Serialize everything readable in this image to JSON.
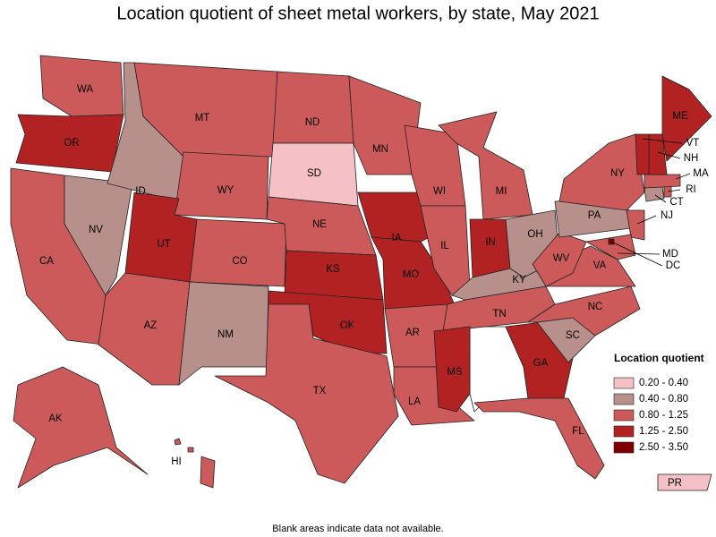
{
  "title": "Location quotient of sheet metal workers, by state, May 2021",
  "footnote": "Blank areas indicate data not available.",
  "legend": {
    "title": "Location quotient",
    "items": [
      {
        "label": "0.20 - 0.40",
        "color": "#f5c1c6"
      },
      {
        "label": "0.40 - 0.80",
        "color": "#b8908b"
      },
      {
        "label": "0.80 - 1.25",
        "color": "#cd5a5a"
      },
      {
        "label": "1.25 - 2.50",
        "color": "#b22222"
      },
      {
        "label": "2.50 - 3.50",
        "color": "#7f0000"
      }
    ]
  },
  "states": [
    {
      "label": "WA",
      "bin": 2
    },
    {
      "label": "OR",
      "bin": 3
    },
    {
      "label": "CA",
      "bin": 2
    },
    {
      "label": "NV",
      "bin": 1
    },
    {
      "label": "ID",
      "bin": 1
    },
    {
      "label": "MT",
      "bin": 2
    },
    {
      "label": "WY",
      "bin": 2
    },
    {
      "label": "UT",
      "bin": 3
    },
    {
      "label": "AZ",
      "bin": 2
    },
    {
      "label": "CO",
      "bin": 2
    },
    {
      "label": "NM",
      "bin": 1
    },
    {
      "label": "ND",
      "bin": 2
    },
    {
      "label": "SD",
      "bin": 0
    },
    {
      "label": "NE",
      "bin": 2
    },
    {
      "label": "KS",
      "bin": 3
    },
    {
      "label": "OK",
      "bin": 3
    },
    {
      "label": "TX",
      "bin": 2
    },
    {
      "label": "MN",
      "bin": 2
    },
    {
      "label": "IA",
      "bin": 3
    },
    {
      "label": "MO",
      "bin": 3
    },
    {
      "label": "AR",
      "bin": 2
    },
    {
      "label": "LA",
      "bin": 2
    },
    {
      "label": "WI",
      "bin": 2
    },
    {
      "label": "IL",
      "bin": 2
    },
    {
      "label": "MI",
      "bin": 2
    },
    {
      "label": "IN",
      "bin": 3
    },
    {
      "label": "OH",
      "bin": 1
    },
    {
      "label": "KY",
      "bin": 1
    },
    {
      "label": "TN",
      "bin": 2
    },
    {
      "label": "MS",
      "bin": 3
    },
    {
      "label": "GA",
      "bin": 3
    },
    {
      "label": "FL",
      "bin": 2
    },
    {
      "label": "SC",
      "bin": 1
    },
    {
      "label": "NC",
      "bin": 2
    },
    {
      "label": "VA",
      "bin": 2
    },
    {
      "label": "WV",
      "bin": 2
    },
    {
      "label": "PA",
      "bin": 1
    },
    {
      "label": "NY",
      "bin": 2
    },
    {
      "label": "NJ",
      "bin": 2
    },
    {
      "label": "MD",
      "bin": 2
    },
    {
      "label": "DC",
      "bin": 4
    },
    {
      "label": "CT",
      "bin": 1
    },
    {
      "label": "RI",
      "bin": 2
    },
    {
      "label": "MA",
      "bin": 2
    },
    {
      "label": "NH",
      "bin": 3
    },
    {
      "label": "VT",
      "bin": 3
    },
    {
      "label": "ME",
      "bin": 3
    },
    {
      "label": "AK",
      "bin": 2
    },
    {
      "label": "HI",
      "bin": 2
    },
    {
      "label": "PR",
      "bin": 0
    }
  ]
}
